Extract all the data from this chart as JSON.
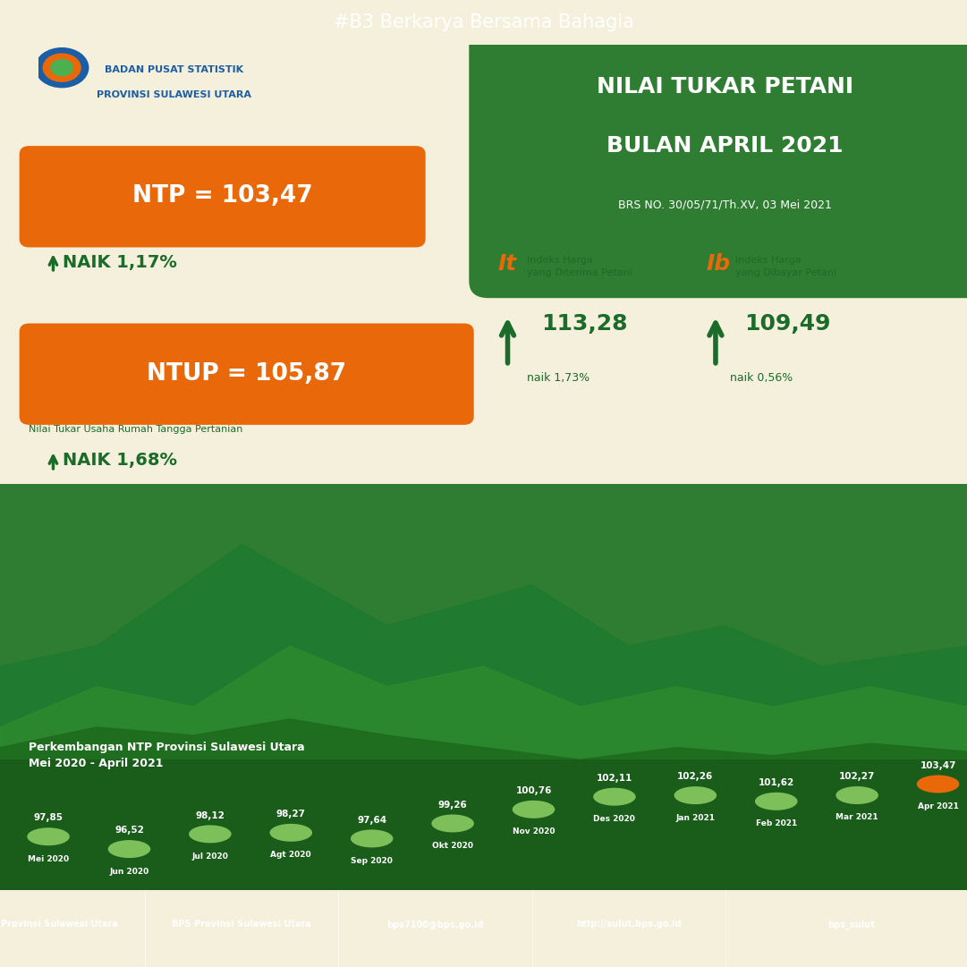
{
  "header_text": "#B3 Berkarya Bersama Bahagia",
  "header_bg": "#1B5EA6",
  "header_text_color": "#FFFFFF",
  "main_bg_left": "#F5F0DC",
  "main_bg_right": "#2E7D32",
  "title_line1": "NILAI TUKAR PETANI",
  "title_line2": "BULAN APRIL 2021",
  "title_sub": "BRS NO. 30/05/71/Th.XV, 03 Mei 2021",
  "logo_org_line1": "BADAN PUSAT STATISTIK",
  "logo_org_line2": "PROVINSI SULAWESI UTARA",
  "ntp_label": "NTP = 103,47",
  "ntp_naik": "NAIK 1,17%",
  "ntup_label": "NTUP = 105,87",
  "ntup_sub": "Nilai Tukar Usaha Rumah Tangga Pertanian",
  "ntup_naik": "NAIK 1,68%",
  "it_label": "It",
  "it_desc1": "Indeks Harga",
  "it_desc2": "yang Diterima Petani",
  "it_value": "113,28",
  "it_naik": "naik 1,73%",
  "ib_label": "Ib",
  "ib_desc1": "Indeks Harga",
  "ib_desc2": "yang Dibayar Petani",
  "ib_value": "109,49",
  "ib_naik": "naik 0,56%",
  "orange": "#E8680A",
  "dark_green": "#1B6B2B",
  "light_green": "#4CAF50",
  "medium_green": "#2E7D32",
  "chart_bg": "#2E7D32",
  "chart_title1": "Perkembangan NTP Provinsi Sulawesi Utara",
  "chart_title2": "Mei 2020 - April 2021",
  "months": [
    "Mei 2020",
    "Jun 2020",
    "Jul 2020",
    "Agt 2020",
    "Sep 2020",
    "Okt 2020",
    "Nov 2020",
    "Des 2020",
    "Jan 2021",
    "Feb 2021",
    "Mar 2021",
    "Apr 2021"
  ],
  "values": [
    97.85,
    96.52,
    98.12,
    98.27,
    97.64,
    99.26,
    100.76,
    102.11,
    102.26,
    101.62,
    102.27,
    103.47
  ],
  "dot_color_normal": "#7DC05A",
  "dot_color_last": "#E8680A",
  "footer_bg": "#1B5EA6",
  "footer_items": [
    "BPS Provinsi Sulawesi Utara",
    "BPS Provinsi Sulawesi Utara",
    "bps7100@bps.go.id",
    "http://sulut.bps.go.id",
    "bps_sulut"
  ],
  "landscape_green_dark": "#1B6B2B",
  "landscape_green_mid": "#2E8B2E",
  "landscape_green_light": "#4CAF50"
}
